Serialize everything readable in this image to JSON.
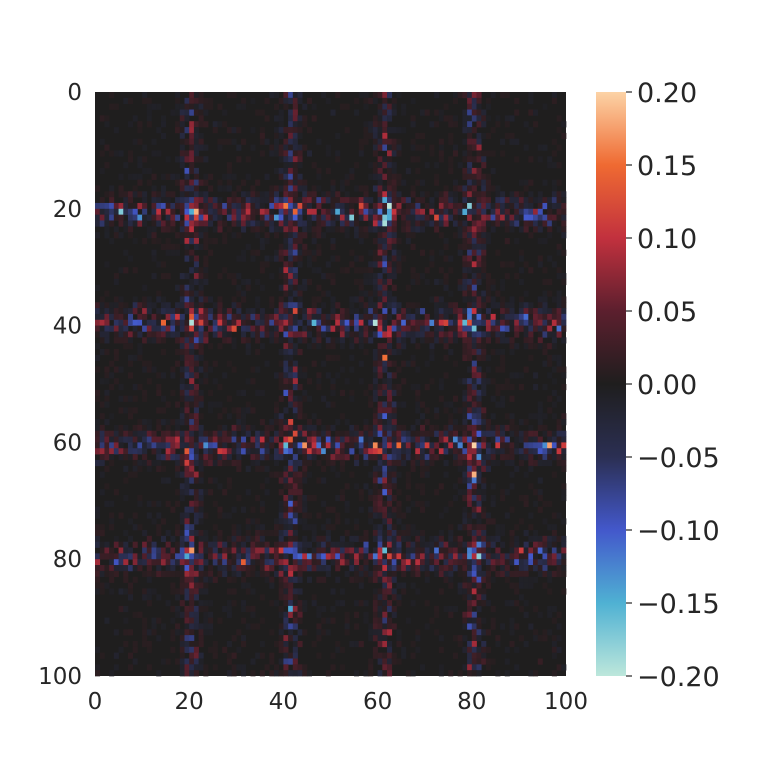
{
  "chart_data": {
    "type": "heatmap",
    "title": "",
    "xlabel": "",
    "ylabel": "",
    "xlim": [
      0,
      100
    ],
    "ylim": [
      0,
      100
    ],
    "x_ticks": [
      "0",
      "20",
      "40",
      "60",
      "80",
      "100"
    ],
    "y_ticks": [
      "0",
      "20",
      "40",
      "60",
      "80",
      "100"
    ],
    "colorbar": {
      "vmin": -0.2,
      "vmax": 0.2,
      "ticks": [
        "0.20",
        "0.15",
        "0.10",
        "0.05",
        "0.00",
        "−0.05",
        "−0.10",
        "−0.15",
        "−0.20"
      ],
      "colormap": "icefire",
      "stops": [
        "#bde7db",
        "#4fb1d3",
        "#4358cb",
        "#2b2f53",
        "#1f1e1e",
        "#5c1f2e",
        "#c2313e",
        "#ef6a32",
        "#fcd3a6"
      ]
    },
    "structure": {
      "grid_size": 100,
      "horizontal_bands_y": [
        20,
        39,
        60,
        79
      ],
      "vertical_bands_x": [
        20,
        41,
        61,
        80
      ],
      "note_pattern": "sparse noisy values concentrated along grid lines, near zero elsewhere"
    }
  }
}
